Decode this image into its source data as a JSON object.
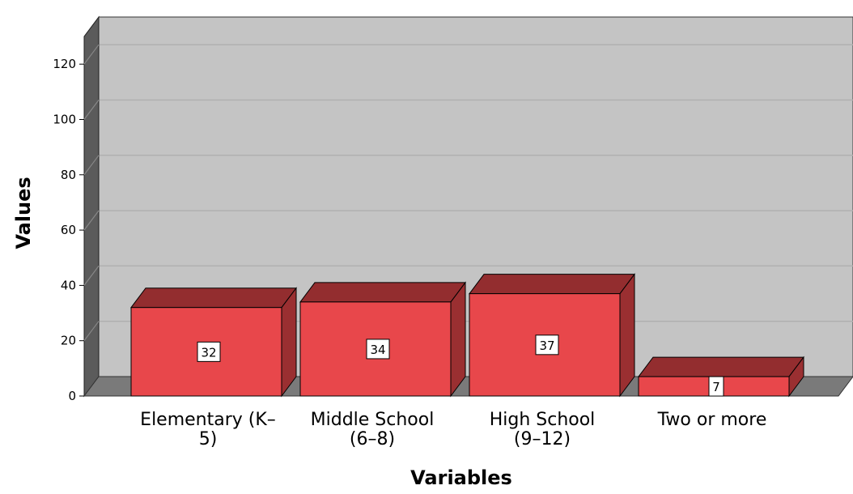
{
  "chart_data": {
    "type": "bar",
    "categories": [
      "Elementary (K–\n5)",
      "Middle School\n(6–8)",
      "High School\n(9–12)",
      "Two or more"
    ],
    "values": [
      32,
      34,
      37,
      7
    ],
    "xlabel": "Variables",
    "ylabel": "Values",
    "ylim": [
      0,
      130
    ],
    "yticks": [
      0,
      20,
      40,
      60,
      80,
      100,
      120
    ],
    "grid": true,
    "legend": "none",
    "style": "3d",
    "colors": {
      "bar_front": "#e8474b",
      "bar_top": "#932d2f",
      "bar_side": "#9a2f31",
      "plot_back": "#c4c4c4",
      "plot_wall": "#5b5b5b",
      "plot_floor": "#7a7a7a",
      "gridline": "#b0b0b0"
    }
  }
}
